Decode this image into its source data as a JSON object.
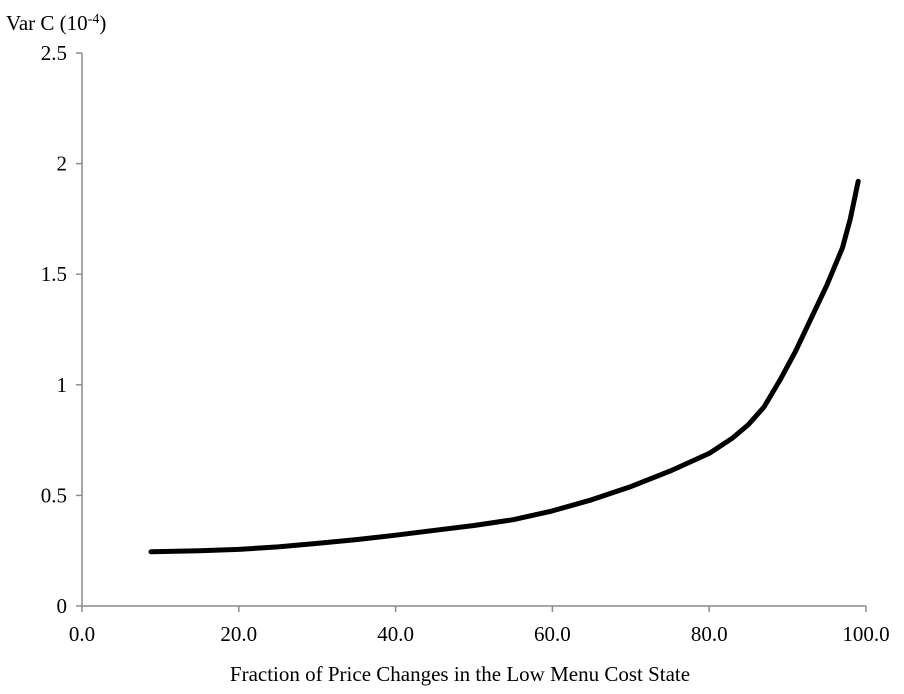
{
  "chart_data": {
    "type": "line",
    "title": "",
    "ylabel": "Var C (10",
    "ylabel_sup": "-4",
    "ylabel_close": ")",
    "xlabel": "Fraction of Price Changes in the Low Menu Cost State",
    "xlim": [
      0,
      100
    ],
    "ylim": [
      0,
      2.5
    ],
    "x_ticks": [
      "0.0",
      "20.0",
      "40.0",
      "60.0",
      "80.0",
      "100.0"
    ],
    "y_ticks": [
      "0",
      "0.5",
      "1",
      "1.5",
      "2",
      "2.5"
    ],
    "grid": false,
    "series": [
      {
        "color": "#000000",
        "x": [
          8.8,
          15,
          20,
          25,
          30,
          35,
          40,
          45,
          50,
          55,
          60,
          65,
          70,
          75,
          80,
          83,
          85,
          87,
          89,
          91,
          93,
          95,
          97,
          98,
          99
        ],
        "y": [
          0.245,
          0.25,
          0.256,
          0.267,
          0.283,
          0.3,
          0.32,
          0.342,
          0.364,
          0.39,
          0.43,
          0.48,
          0.54,
          0.61,
          0.69,
          0.76,
          0.82,
          0.9,
          1.02,
          1.15,
          1.3,
          1.45,
          1.62,
          1.75,
          1.92
        ]
      }
    ]
  }
}
